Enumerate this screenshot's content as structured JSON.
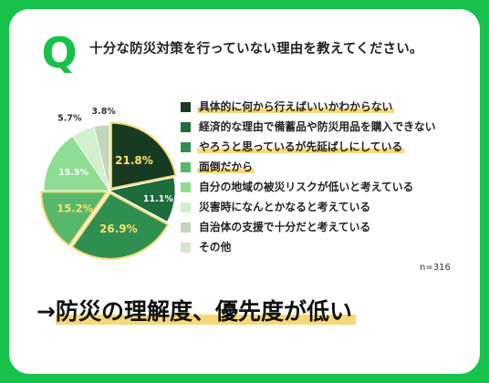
{
  "header": {
    "q_letter": "Q",
    "question": "十分な防災対策を行っていない理由を教えてください。"
  },
  "colors": {
    "background": "#16c24a",
    "card": "#ffffff",
    "highlight": "#f6d874",
    "q_mark": "#16c24a"
  },
  "chart_data": {
    "type": "pie",
    "title": "",
    "unit": "%",
    "slices": [
      {
        "label": "具体的に何から行えばいいかわからない",
        "value": 21.8,
        "display": "21.8%",
        "color": "#173b22",
        "label_color": "#ffe066",
        "highlight": true,
        "label_size": 12
      },
      {
        "label": "経済的な理由で備蓄品や防災用品を購入できない",
        "value": 11.1,
        "display": "11.1%",
        "color": "#1e6b3c",
        "label_color": "#ffffff",
        "highlight": false,
        "label_size": 9.5
      },
      {
        "label": "やろうと思っているが先延ばしにしている",
        "value": 26.9,
        "display": "26.9%",
        "color": "#2f8f50",
        "label_color": "#ffe066",
        "highlight": true,
        "label_size": 12
      },
      {
        "label": "面倒だから",
        "value": 15.2,
        "display": "15.2%",
        "color": "#57b86c",
        "label_color": "#ffe066",
        "highlight": true,
        "label_size": 11.5
      },
      {
        "label": "自分の地域の被災リスクが低いと考えている",
        "value": 15.5,
        "display": "15.5%",
        "color": "#8fdc95",
        "label_color": "#ffffff",
        "highlight": false,
        "label_size": 9.5
      },
      {
        "label": "災害時になんとかなると考えている",
        "value": 5.7,
        "display": "5.7%",
        "color": "#d2f0cf",
        "label_color": "#333333",
        "highlight": false,
        "label_size": 9.5
      },
      {
        "label": "自治体の支援で十分だと考えている",
        "value": 3.8,
        "display": "3.8%",
        "color": "#c4d6bc",
        "label_color": "#333333",
        "highlight": false,
        "label_size": 9.5
      },
      {
        "label": "その他",
        "value": 0,
        "display": "",
        "color": "#d6e4d2",
        "label_color": "#333333",
        "highlight": false,
        "label_size": 9.5
      }
    ],
    "sample_size": "n=316"
  },
  "conclusion": {
    "arrow": "→",
    "text": "防災の理解度、優先度が低い"
  }
}
